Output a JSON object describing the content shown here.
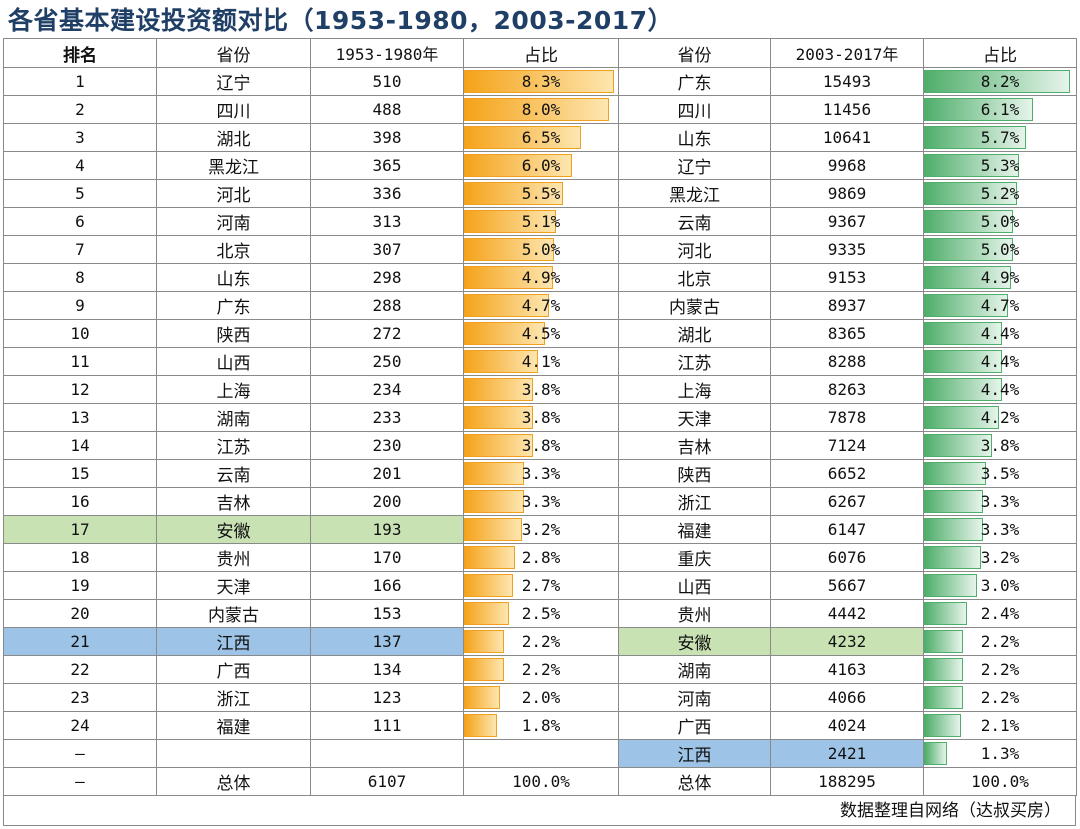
{
  "title": "各省基本建设投资额对比（1953-1980，2003-2017）",
  "headers": {
    "rank": "排名",
    "province_a": "省份",
    "value_a": "1953-1980年",
    "share_a": "占比",
    "province_b": "省份",
    "value_b": "2003-2017年",
    "share_b": "占比"
  },
  "chart_data": {
    "type": "table",
    "title": "各省基本建设投资额对比（1953-1980，2003-2017）",
    "columns": [
      "排名",
      "省份",
      "1953-1980年",
      "占比",
      "省份",
      "2003-2017年",
      "占比"
    ],
    "rows": [
      {
        "rank": "1",
        "prov_a": "辽宁",
        "val_a": "510",
        "pct_a": "8.3%",
        "share_a": 8.3,
        "prov_b": "广东",
        "val_b": "15493",
        "pct_b": "8.2%",
        "share_b": 8.2
      },
      {
        "rank": "2",
        "prov_a": "四川",
        "val_a": "488",
        "pct_a": "8.0%",
        "share_a": 8.0,
        "prov_b": "四川",
        "val_b": "11456",
        "pct_b": "6.1%",
        "share_b": 6.1
      },
      {
        "rank": "3",
        "prov_a": "湖北",
        "val_a": "398",
        "pct_a": "6.5%",
        "share_a": 6.5,
        "prov_b": "山东",
        "val_b": "10641",
        "pct_b": "5.7%",
        "share_b": 5.7
      },
      {
        "rank": "4",
        "prov_a": "黑龙江",
        "val_a": "365",
        "pct_a": "6.0%",
        "share_a": 6.0,
        "prov_b": "辽宁",
        "val_b": "9968",
        "pct_b": "5.3%",
        "share_b": 5.3
      },
      {
        "rank": "5",
        "prov_a": "河北",
        "val_a": "336",
        "pct_a": "5.5%",
        "share_a": 5.5,
        "prov_b": "黑龙江",
        "val_b": "9869",
        "pct_b": "5.2%",
        "share_b": 5.2
      },
      {
        "rank": "6",
        "prov_a": "河南",
        "val_a": "313",
        "pct_a": "5.1%",
        "share_a": 5.1,
        "prov_b": "云南",
        "val_b": "9367",
        "pct_b": "5.0%",
        "share_b": 5.0
      },
      {
        "rank": "7",
        "prov_a": "北京",
        "val_a": "307",
        "pct_a": "5.0%",
        "share_a": 5.0,
        "prov_b": "河北",
        "val_b": "9335",
        "pct_b": "5.0%",
        "share_b": 5.0
      },
      {
        "rank": "8",
        "prov_a": "山东",
        "val_a": "298",
        "pct_a": "4.9%",
        "share_a": 4.9,
        "prov_b": "北京",
        "val_b": "9153",
        "pct_b": "4.9%",
        "share_b": 4.9
      },
      {
        "rank": "9",
        "prov_a": "广东",
        "val_a": "288",
        "pct_a": "4.7%",
        "share_a": 4.7,
        "prov_b": "内蒙古",
        "val_b": "8937",
        "pct_b": "4.7%",
        "share_b": 4.7
      },
      {
        "rank": "10",
        "prov_a": "陕西",
        "val_a": "272",
        "pct_a": "4.5%",
        "share_a": 4.5,
        "prov_b": "湖北",
        "val_b": "8365",
        "pct_b": "4.4%",
        "share_b": 4.4
      },
      {
        "rank": "11",
        "prov_a": "山西",
        "val_a": "250",
        "pct_a": "4.1%",
        "share_a": 4.1,
        "prov_b": "江苏",
        "val_b": "8288",
        "pct_b": "4.4%",
        "share_b": 4.4
      },
      {
        "rank": "12",
        "prov_a": "上海",
        "val_a": "234",
        "pct_a": "3.8%",
        "share_a": 3.8,
        "prov_b": "上海",
        "val_b": "8263",
        "pct_b": "4.4%",
        "share_b": 4.4
      },
      {
        "rank": "13",
        "prov_a": "湖南",
        "val_a": "233",
        "pct_a": "3.8%",
        "share_a": 3.8,
        "prov_b": "天津",
        "val_b": "7878",
        "pct_b": "4.2%",
        "share_b": 4.2
      },
      {
        "rank": "14",
        "prov_a": "江苏",
        "val_a": "230",
        "pct_a": "3.8%",
        "share_a": 3.8,
        "prov_b": "吉林",
        "val_b": "7124",
        "pct_b": "3.8%",
        "share_b": 3.8
      },
      {
        "rank": "15",
        "prov_a": "云南",
        "val_a": "201",
        "pct_a": "3.3%",
        "share_a": 3.3,
        "prov_b": "陕西",
        "val_b": "6652",
        "pct_b": "3.5%",
        "share_b": 3.5
      },
      {
        "rank": "16",
        "prov_a": "吉林",
        "val_a": "200",
        "pct_a": "3.3%",
        "share_a": 3.3,
        "prov_b": "浙江",
        "val_b": "6267",
        "pct_b": "3.3%",
        "share_b": 3.3
      },
      {
        "rank": "17",
        "prov_a": "安徽",
        "val_a": "193",
        "pct_a": "3.2%",
        "share_a": 3.2,
        "prov_b": "福建",
        "val_b": "6147",
        "pct_b": "3.3%",
        "share_b": 3.3,
        "highlight_a": "green"
      },
      {
        "rank": "18",
        "prov_a": "贵州",
        "val_a": "170",
        "pct_a": "2.8%",
        "share_a": 2.8,
        "prov_b": "重庆",
        "val_b": "6076",
        "pct_b": "3.2%",
        "share_b": 3.2
      },
      {
        "rank": "19",
        "prov_a": "天津",
        "val_a": "166",
        "pct_a": "2.7%",
        "share_a": 2.7,
        "prov_b": "山西",
        "val_b": "5667",
        "pct_b": "3.0%",
        "share_b": 3.0
      },
      {
        "rank": "20",
        "prov_a": "内蒙古",
        "val_a": "153",
        "pct_a": "2.5%",
        "share_a": 2.5,
        "prov_b": "贵州",
        "val_b": "4442",
        "pct_b": "2.4%",
        "share_b": 2.4
      },
      {
        "rank": "21",
        "prov_a": "江西",
        "val_a": "137",
        "pct_a": "2.2%",
        "share_a": 2.2,
        "prov_b": "安徽",
        "val_b": "4232",
        "pct_b": "2.2%",
        "share_b": 2.2,
        "highlight_a": "blue",
        "highlight_b": "green"
      },
      {
        "rank": "22",
        "prov_a": "广西",
        "val_a": "134",
        "pct_a": "2.2%",
        "share_a": 2.2,
        "prov_b": "湖南",
        "val_b": "4163",
        "pct_b": "2.2%",
        "share_b": 2.2
      },
      {
        "rank": "23",
        "prov_a": "浙江",
        "val_a": "123",
        "pct_a": "2.0%",
        "share_a": 2.0,
        "prov_b": "河南",
        "val_b": "4066",
        "pct_b": "2.2%",
        "share_b": 2.2
      },
      {
        "rank": "24",
        "prov_a": "福建",
        "val_a": "111",
        "pct_a": "1.8%",
        "share_a": 1.8,
        "prov_b": "广西",
        "val_b": "4024",
        "pct_b": "2.1%",
        "share_b": 2.1
      },
      {
        "rank": "—",
        "prov_a": "",
        "val_a": "",
        "pct_a": "",
        "share_a": null,
        "prov_b": "江西",
        "val_b": "2421",
        "pct_b": "1.3%",
        "share_b": 1.3,
        "highlight_b": "blue"
      },
      {
        "rank": "—",
        "prov_a": "总体",
        "val_a": "6107",
        "pct_a": "100.0%",
        "share_a": null,
        "prov_b": "总体",
        "val_b": "188295",
        "pct_b": "100.0%",
        "share_b": null
      }
    ],
    "bar_scale_max_pct": 8.3
  },
  "source": "数据整理自网络（达叔买房）",
  "colors": {
    "orange_bar": "#f5a31a",
    "green_bar": "#4fae6b",
    "highlight_green": "#c9e2b4",
    "highlight_blue": "#9dc3e6",
    "title": "#1f3f66"
  }
}
